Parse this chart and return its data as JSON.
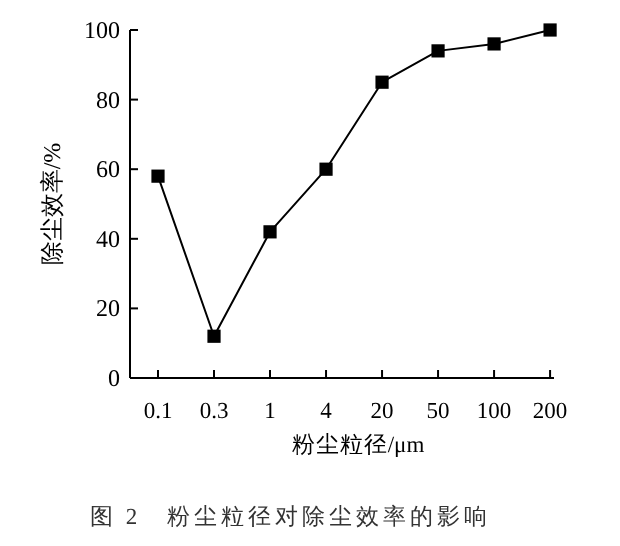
{
  "chart_data": {
    "type": "line",
    "categories": [
      "0.1",
      "0.3",
      "1",
      "4",
      "20",
      "50",
      "100",
      "200"
    ],
    "values": [
      58,
      12,
      42,
      60,
      85,
      94,
      96,
      100
    ],
    "color": "#000000",
    "marker": "square",
    "line_style": "solid",
    "ylim": [
      0,
      100
    ],
    "yticks": [
      0,
      20,
      40,
      60,
      80,
      100
    ],
    "ylabel": "除尘效率/%",
    "xlabel": "粉尘粒径/μm",
    "annotations": [
      "图 2　粉尘粒径对除尘效率的影响"
    ]
  }
}
